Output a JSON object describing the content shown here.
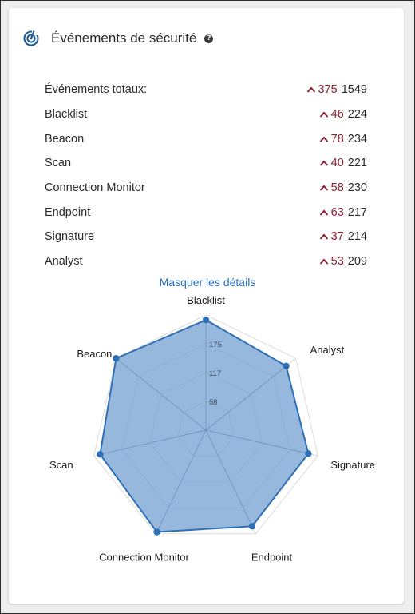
{
  "header": {
    "title": "Événements de sécurité",
    "help_glyph": "?"
  },
  "summary": {
    "rows": [
      {
        "label": "Événements totaux:",
        "delta": "375",
        "total": "1549"
      },
      {
        "label": "Blacklist",
        "delta": "46",
        "total": "224"
      },
      {
        "label": "Beacon",
        "delta": "78",
        "total": "234"
      },
      {
        "label": "Scan",
        "delta": "40",
        "total": "221"
      },
      {
        "label": "Connection Monitor",
        "delta": "58",
        "total": "230"
      },
      {
        "label": "Endpoint",
        "delta": "63",
        "total": "217"
      },
      {
        "label": "Signature",
        "delta": "37",
        "total": "214"
      },
      {
        "label": "Analyst",
        "delta": "53",
        "total": "209"
      }
    ]
  },
  "toggle_label": "Masquer les détails",
  "colors": {
    "accent": "#2a72c8",
    "delta": "#8b2232",
    "fill": "#96b8dc",
    "stroke": "#2f6fb5"
  },
  "chart_data": {
    "type": "radar",
    "categories": [
      "Blacklist",
      "Analyst",
      "Signature",
      "Endpoint",
      "Connection Monitor",
      "Scan",
      "Beacon"
    ],
    "values": [
      224,
      209,
      214,
      217,
      230,
      221,
      234
    ],
    "ticks": [
      "58",
      "117",
      "175"
    ],
    "rmax": 234,
    "grid": true
  }
}
